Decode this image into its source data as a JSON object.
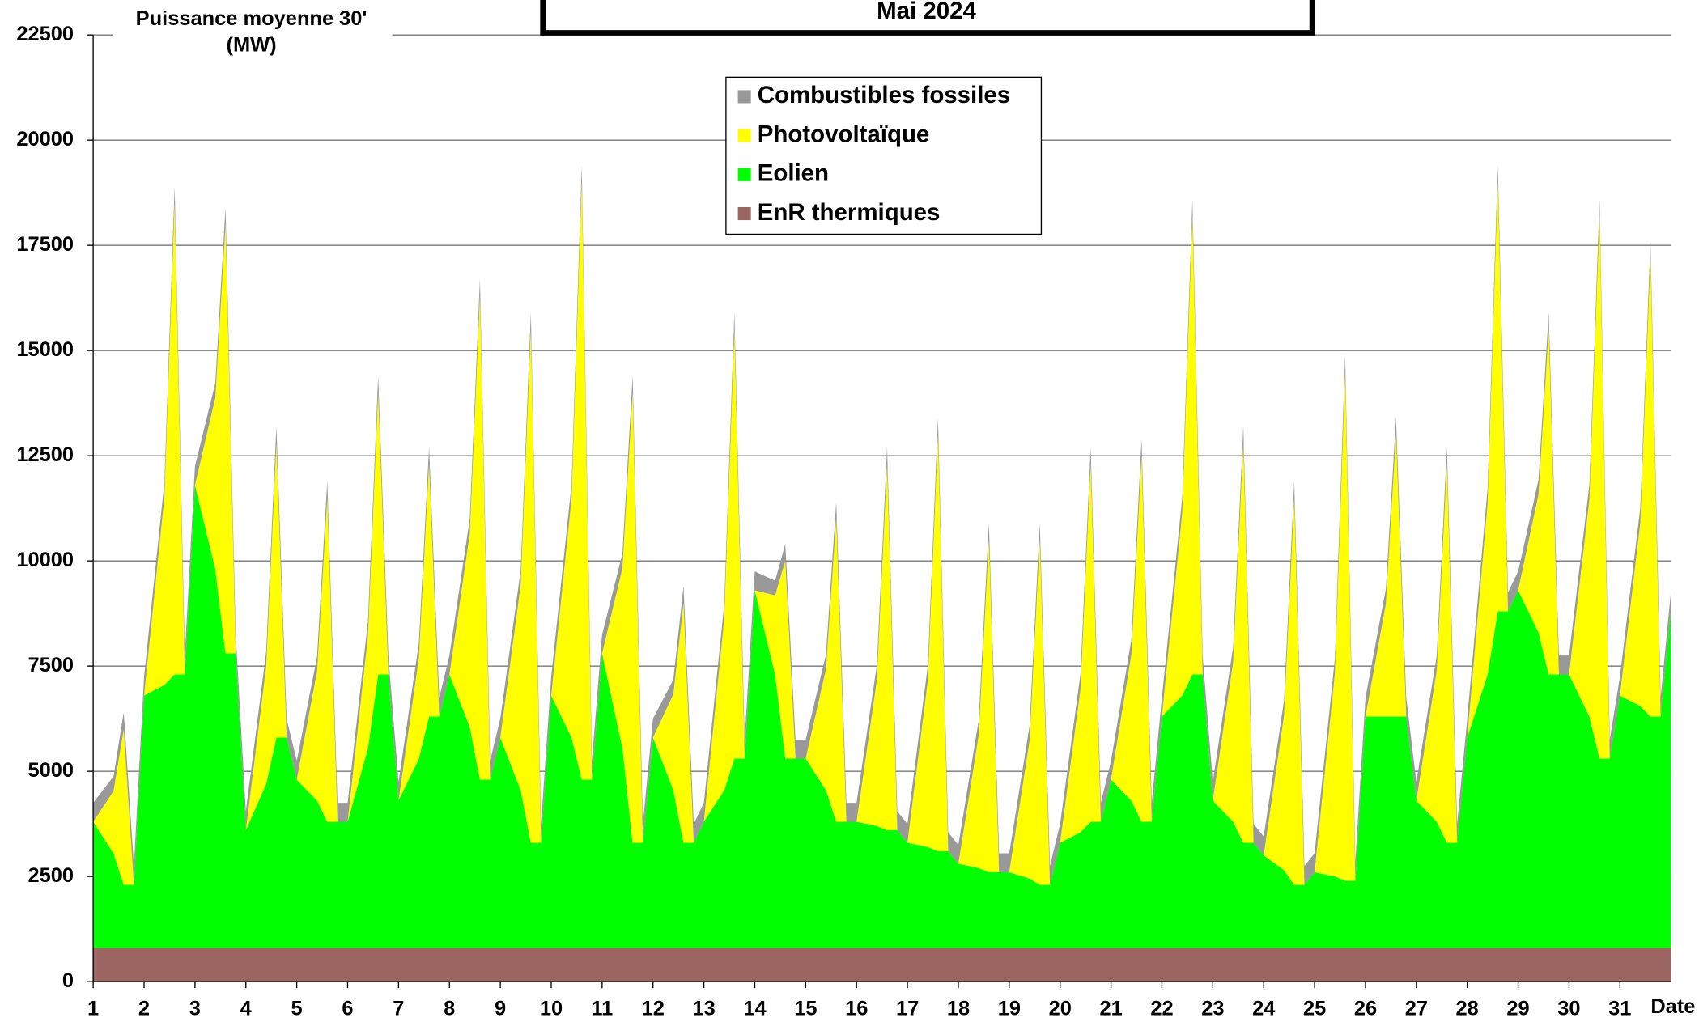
{
  "chart_data": {
    "type": "stacked_area",
    "title": "Mai 2024",
    "y_label": [
      "Puissance moyenne 30'",
      "(MW)"
    ],
    "x_label": "Date",
    "xlim": [
      1,
      32
    ],
    "xticks": [
      1,
      2,
      3,
      4,
      5,
      6,
      7,
      8,
      9,
      10,
      11,
      12,
      13,
      14,
      15,
      16,
      17,
      18,
      19,
      20,
      21,
      22,
      23,
      24,
      25,
      26,
      27,
      28,
      29,
      30,
      31
    ],
    "ylim": [
      0,
      22500
    ],
    "yticks": [
      0,
      2500,
      5000,
      7500,
      10000,
      12500,
      15000,
      17500,
      20000,
      22500
    ],
    "grid": true,
    "legend": "top",
    "x": [
      1,
      1.4,
      1.6,
      1.8,
      2,
      2.4,
      2.6,
      2.8,
      3,
      3.4,
      3.6,
      3.8,
      4,
      4.4,
      4.6,
      4.8,
      5,
      5.4,
      5.6,
      5.8,
      6,
      6.4,
      6.6,
      6.8,
      7,
      7.4,
      7.6,
      7.8,
      8,
      8.4,
      8.6,
      8.8,
      9,
      9.4,
      9.6,
      9.8,
      10,
      10.4,
      10.6,
      10.8,
      11,
      11.4,
      11.6,
      11.8,
      12,
      12.4,
      12.6,
      12.8,
      13,
      13.4,
      13.6,
      13.8,
      14,
      14.4,
      14.6,
      14.8,
      15,
      15.4,
      15.6,
      15.8,
      16,
      16.4,
      16.6,
      16.8,
      17,
      17.4,
      17.6,
      17.8,
      18,
      18.4,
      18.6,
      18.8,
      19,
      19.4,
      19.6,
      19.8,
      20,
      20.4,
      20.6,
      20.8,
      21,
      21.4,
      21.6,
      21.8,
      22,
      22.4,
      22.6,
      22.8,
      23,
      23.4,
      23.6,
      23.8,
      24,
      24.4,
      24.6,
      24.8,
      25,
      25.4,
      25.6,
      25.8,
      26,
      26.4,
      26.6,
      26.8,
      27,
      27.4,
      27.6,
      27.8,
      28,
      28.4,
      28.6,
      28.8,
      29,
      29.4,
      29.6,
      29.8,
      30,
      30.4,
      30.6,
      30.8,
      31,
      31.4,
      31.6,
      31.8,
      32
    ],
    "series": [
      {
        "name": "EnR thermiques",
        "color": "#9b6662",
        "values": [
          800,
          800,
          800,
          800,
          800,
          800,
          800,
          800,
          800,
          800,
          800,
          800,
          800,
          800,
          800,
          800,
          800,
          800,
          800,
          800,
          800,
          800,
          800,
          800,
          800,
          800,
          800,
          800,
          800,
          800,
          800,
          800,
          800,
          800,
          800,
          800,
          800,
          800,
          800,
          800,
          800,
          800,
          800,
          800,
          800,
          800,
          800,
          800,
          800,
          800,
          800,
          800,
          800,
          800,
          800,
          800,
          800,
          800,
          800,
          800,
          800,
          800,
          800,
          800,
          800,
          800,
          800,
          800,
          800,
          800,
          800,
          800,
          800,
          800,
          800,
          800,
          800,
          800,
          800,
          800,
          800,
          800,
          800,
          800,
          800,
          800,
          800,
          800,
          800,
          800,
          800,
          800,
          800,
          800,
          800,
          800,
          800,
          800,
          800,
          800,
          800,
          800,
          800,
          800,
          800,
          800,
          800,
          800,
          800,
          800,
          800,
          800,
          800,
          800,
          800,
          800,
          800,
          800,
          800,
          800,
          800,
          800,
          800,
          800,
          800
        ]
      },
      {
        "name": "Eolien",
        "color": "#00ff00",
        "values": [
          3000,
          2250,
          1500,
          1500,
          6000,
          6250,
          6500,
          6500,
          11000,
          9000,
          7000,
          7000,
          2800,
          3900,
          5000,
          5000,
          4000,
          3500,
          3000,
          3000,
          3000,
          4750,
          6500,
          6500,
          3500,
          4500,
          5500,
          5500,
          6500,
          5250,
          4000,
          4000,
          5000,
          3750,
          2500,
          2500,
          6000,
          5000,
          4000,
          4000,
          7000,
          4750,
          2500,
          2500,
          5000,
          3750,
          2500,
          2500,
          3000,
          3750,
          4500,
          4500,
          8500,
          6500,
          4500,
          4500,
          4500,
          3750,
          3000,
          3000,
          3000,
          2900,
          2800,
          2800,
          2500,
          2400,
          2300,
          2300,
          2000,
          1900,
          1800,
          1800,
          1800,
          1650,
          1500,
          1500,
          2500,
          2750,
          3000,
          3000,
          4000,
          3500,
          3000,
          3000,
          5500,
          6000,
          6500,
          6500,
          3500,
          3000,
          2500,
          2500,
          2200,
          1850,
          1500,
          1500,
          1800,
          1700,
          1600,
          1600,
          5500,
          5500,
          5500,
          5500,
          3500,
          3000,
          2500,
          2500,
          5000,
          6500,
          8000,
          8000,
          8500,
          7500,
          6500,
          6500,
          6500,
          5500,
          4500,
          4500,
          6000,
          5750,
          5500,
          5500,
          8000
        ]
      },
      {
        "name": "Photovoltaïque",
        "color": "#ffff00",
        "values": [
          0,
          1480,
          3700,
          0,
          0,
          4480,
          11200,
          0,
          0,
          4080,
          10200,
          0,
          0,
          2800,
          7000,
          0,
          0,
          3080,
          7700,
          0,
          0,
          2680,
          6700,
          0,
          0,
          2400,
          6000,
          0,
          0,
          4600,
          11500,
          0,
          0,
          4880,
          12200,
          0,
          0,
          5680,
          14200,
          0,
          0,
          4280,
          10700,
          0,
          0,
          2280,
          5700,
          0,
          0,
          4080,
          10200,
          0,
          0,
          1880,
          4700,
          0,
          0,
          2880,
          7200,
          0,
          0,
          3480,
          8700,
          0,
          0,
          3960,
          9900,
          0,
          0,
          3160,
          7900,
          0,
          0,
          3280,
          8200,
          0,
          0,
          3400,
          8500,
          0,
          0,
          3480,
          8700,
          0,
          0,
          4360,
          10900,
          0,
          0,
          3800,
          9500,
          0,
          0,
          3680,
          9200,
          0,
          0,
          4840,
          12100,
          0,
          0,
          2680,
          6700,
          0,
          0,
          3600,
          9000,
          0,
          0,
          4080,
          10200,
          0,
          0,
          3280,
          8200,
          0,
          0,
          5160,
          12900,
          0,
          0,
          4360,
          10900,
          0,
          0
        ]
      },
      {
        "name": "Combustibles fossiles",
        "color": "#999999",
        "values": [
          450,
          350,
          400,
          450,
          450,
          350,
          400,
          450,
          450,
          350,
          400,
          450,
          450,
          350,
          400,
          450,
          450,
          350,
          400,
          450,
          450,
          350,
          400,
          450,
          450,
          350,
          400,
          450,
          450,
          350,
          400,
          450,
          450,
          350,
          400,
          450,
          450,
          350,
          400,
          450,
          450,
          350,
          400,
          450,
          450,
          350,
          400,
          450,
          450,
          350,
          400,
          450,
          450,
          350,
          400,
          450,
          450,
          350,
          400,
          450,
          450,
          350,
          400,
          450,
          450,
          350,
          400,
          450,
          450,
          350,
          400,
          450,
          450,
          350,
          400,
          450,
          450,
          350,
          400,
          450,
          450,
          350,
          400,
          450,
          450,
          350,
          400,
          450,
          450,
          350,
          400,
          450,
          450,
          350,
          400,
          450,
          450,
          350,
          400,
          450,
          450,
          350,
          400,
          450,
          450,
          350,
          400,
          450,
          450,
          350,
          400,
          450,
          450,
          350,
          400,
          450,
          450,
          350,
          400,
          450,
          450,
          350,
          400,
          450,
          450
        ]
      }
    ]
  }
}
